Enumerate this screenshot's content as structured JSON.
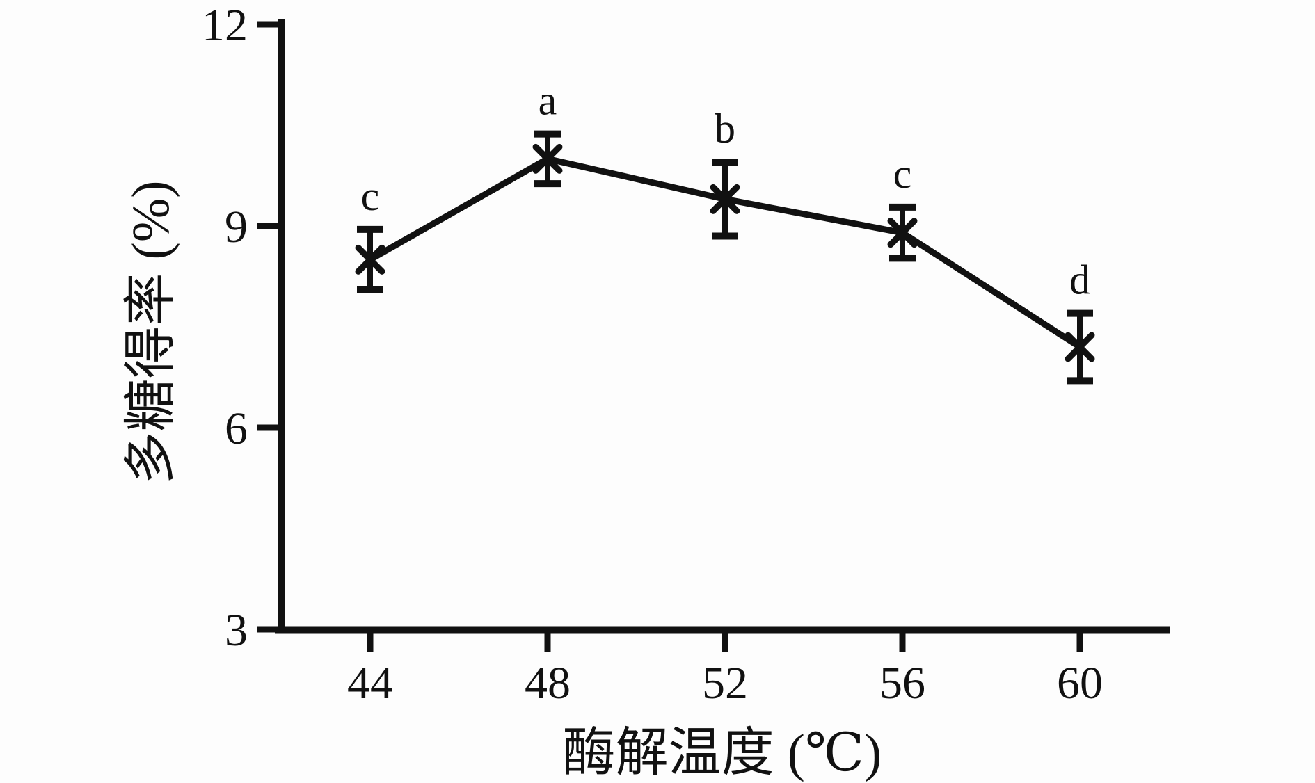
{
  "chart_data": {
    "type": "line",
    "title": "",
    "x": [
      44,
      48,
      52,
      56,
      60
    ],
    "xticks": [
      44,
      48,
      52,
      56,
      60
    ],
    "yticks": [
      3,
      6,
      9,
      12
    ],
    "xlim": [
      44,
      60
    ],
    "ylim": [
      3,
      12
    ],
    "xlabel": "酶解温度 (℃)",
    "ylabel": "多糖得率 (%)",
    "grid": false,
    "legend_position": "none",
    "marker": "x-cross",
    "error_bars": true,
    "series": [
      {
        "name": "多糖得率",
        "values": [
          8.5,
          10.0,
          9.4,
          8.9,
          7.2
        ],
        "errors": [
          0.45,
          0.37,
          0.55,
          0.38,
          0.5
        ],
        "sig_labels": [
          "c",
          "a",
          "b",
          "c",
          "d"
        ]
      }
    ],
    "colors": {
      "ink": "#111111",
      "background": "#fdfdfd"
    }
  }
}
